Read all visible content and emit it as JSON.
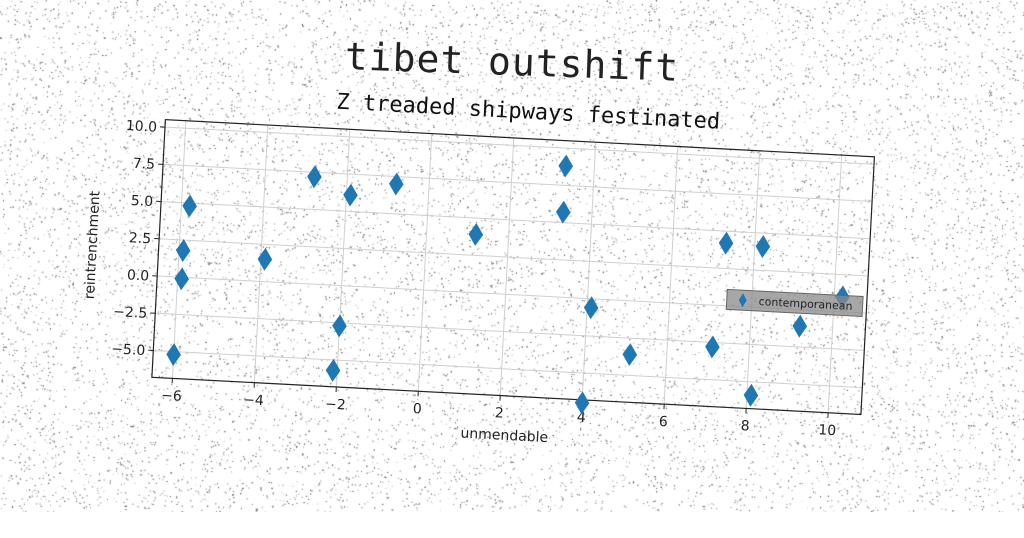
{
  "figure": {
    "suptitle": "tibet outshift"
  },
  "chart_data": {
    "type": "scatter",
    "title": "Z treaded shipways festinated",
    "xlabel": "unmendable",
    "ylabel": "reintrenchment",
    "xlim": [
      -6.5,
      10.8
    ],
    "ylim": [
      -6.8,
      10.5
    ],
    "xticks": [
      -6,
      -4,
      -2,
      0,
      2,
      4,
      6,
      8,
      10
    ],
    "yticks": [
      -5.0,
      -2.5,
      0.0,
      2.5,
      5.0,
      7.5,
      10.0
    ],
    "xtick_labels": [
      "−6",
      "−4",
      "−2",
      "0",
      "2",
      "4",
      "6",
      "8",
      "10"
    ],
    "ytick_labels": [
      "−5.0",
      "−2.5",
      "0.0",
      "2.5",
      "5.0",
      "7.5",
      "10.0"
    ],
    "grid": true,
    "legend_position": "right",
    "marker": "thin_diamond",
    "series": [
      {
        "name": "contemporanean",
        "color": "#1f77b4",
        "points": [
          {
            "x": -5.8,
            "y": 4.8
          },
          {
            "x": -5.9,
            "y": 1.8
          },
          {
            "x": -5.9,
            "y": -0.1
          },
          {
            "x": -6.0,
            "y": -5.2
          },
          {
            "x": -3.9,
            "y": 1.5
          },
          {
            "x": -2.8,
            "y": 7.2
          },
          {
            "x": -1.9,
            "y": 6.1
          },
          {
            "x": -0.8,
            "y": 7.0
          },
          {
            "x": -2.0,
            "y": -2.7
          },
          {
            "x": -2.1,
            "y": -5.7
          },
          {
            "x": 1.2,
            "y": 3.9
          },
          {
            "x": 3.3,
            "y": 8.8
          },
          {
            "x": 3.3,
            "y": 5.7
          },
          {
            "x": 4.1,
            "y": -0.6
          },
          {
            "x": 4.0,
            "y": -7.0
          },
          {
            "x": 5.1,
            "y": -3.6
          },
          {
            "x": 7.3,
            "y": 4.2
          },
          {
            "x": 8.2,
            "y": 4.1
          },
          {
            "x": 7.1,
            "y": -2.8
          },
          {
            "x": 8.1,
            "y": -5.9
          },
          {
            "x": 9.2,
            "y": -1.1
          },
          {
            "x": 10.2,
            "y": 1.0
          }
        ]
      }
    ]
  }
}
